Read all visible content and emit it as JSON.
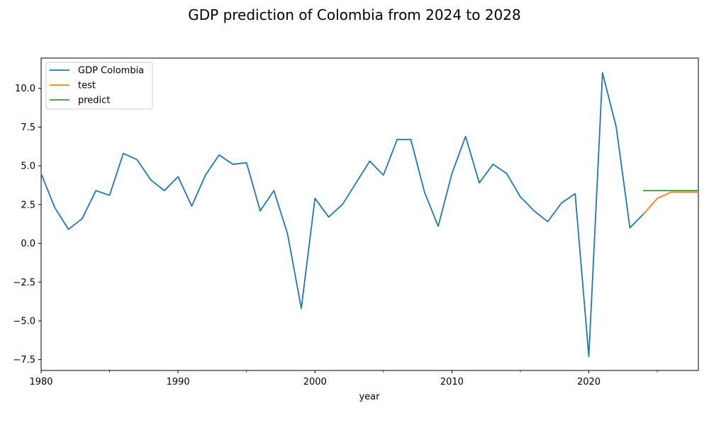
{
  "chart_data": {
    "type": "line",
    "title": "GDP prediction of Colombia from 2024 to 2028",
    "xlabel": "year",
    "ylabel": "",
    "xlim": [
      1980,
      2028
    ],
    "ylim": [
      -8.2,
      11.95
    ],
    "grid": false,
    "legend_position": "top-left",
    "x_ticks": [
      {
        "value": 1980,
        "label": "1980"
      },
      {
        "value": 1990,
        "label": "1990"
      },
      {
        "value": 2000,
        "label": "2000"
      },
      {
        "value": 2010,
        "label": "2010"
      },
      {
        "value": 2020,
        "label": "2020"
      }
    ],
    "x_minor_ticks": [
      1985,
      1995,
      2005,
      2015,
      2025
    ],
    "y_ticks": [
      {
        "value": 10,
        "label": "10.0"
      },
      {
        "value": 7.5,
        "label": "7.5"
      },
      {
        "value": 5,
        "label": "5.0"
      },
      {
        "value": 2.5,
        "label": "2.5"
      },
      {
        "value": 0,
        "label": "0.0"
      },
      {
        "value": -2.5,
        "label": "−2.5"
      },
      {
        "value": -5,
        "label": "−5.0"
      },
      {
        "value": -7.5,
        "label": "−7.5"
      }
    ],
    "series": [
      {
        "name": "GDP Colombia",
        "color": "#1f77b4",
        "x": [
          1980,
          1981,
          1982,
          1983,
          1984,
          1985,
          1986,
          1987,
          1988,
          1989,
          1990,
          1991,
          1992,
          1993,
          1994,
          1995,
          1996,
          1997,
          1998,
          1999,
          2000,
          2001,
          2002,
          2003,
          2004,
          2005,
          2006,
          2007,
          2008,
          2009,
          2010,
          2011,
          2012,
          2013,
          2014,
          2015,
          2016,
          2017,
          2018,
          2019,
          2020,
          2021,
          2022,
          2023,
          2024
        ],
        "values": [
          4.5,
          2.3,
          0.9,
          1.6,
          3.4,
          3.1,
          5.8,
          5.4,
          4.1,
          3.4,
          4.3,
          2.4,
          4.4,
          5.7,
          5.1,
          5.2,
          2.1,
          3.4,
          0.6,
          -4.2,
          2.9,
          1.7,
          2.5,
          3.9,
          5.3,
          4.4,
          6.7,
          6.7,
          3.3,
          1.1,
          4.5,
          6.9,
          3.9,
          5.1,
          4.5,
          3.0,
          2.1,
          1.4,
          2.6,
          3.2,
          -7.3,
          11.0,
          7.5,
          1.0,
          1.9
        ]
      },
      {
        "name": "test",
        "color": "#ff7f0e",
        "x": [
          2024,
          2025,
          2026,
          2027,
          2028
        ],
        "values": [
          1.9,
          2.9,
          3.3,
          3.3,
          3.3
        ]
      },
      {
        "name": "predict",
        "color": "#2ca02c",
        "x": [
          2024,
          2025,
          2026,
          2027,
          2028
        ],
        "values": [
          3.4,
          3.4,
          3.4,
          3.4,
          3.4
        ]
      }
    ]
  }
}
